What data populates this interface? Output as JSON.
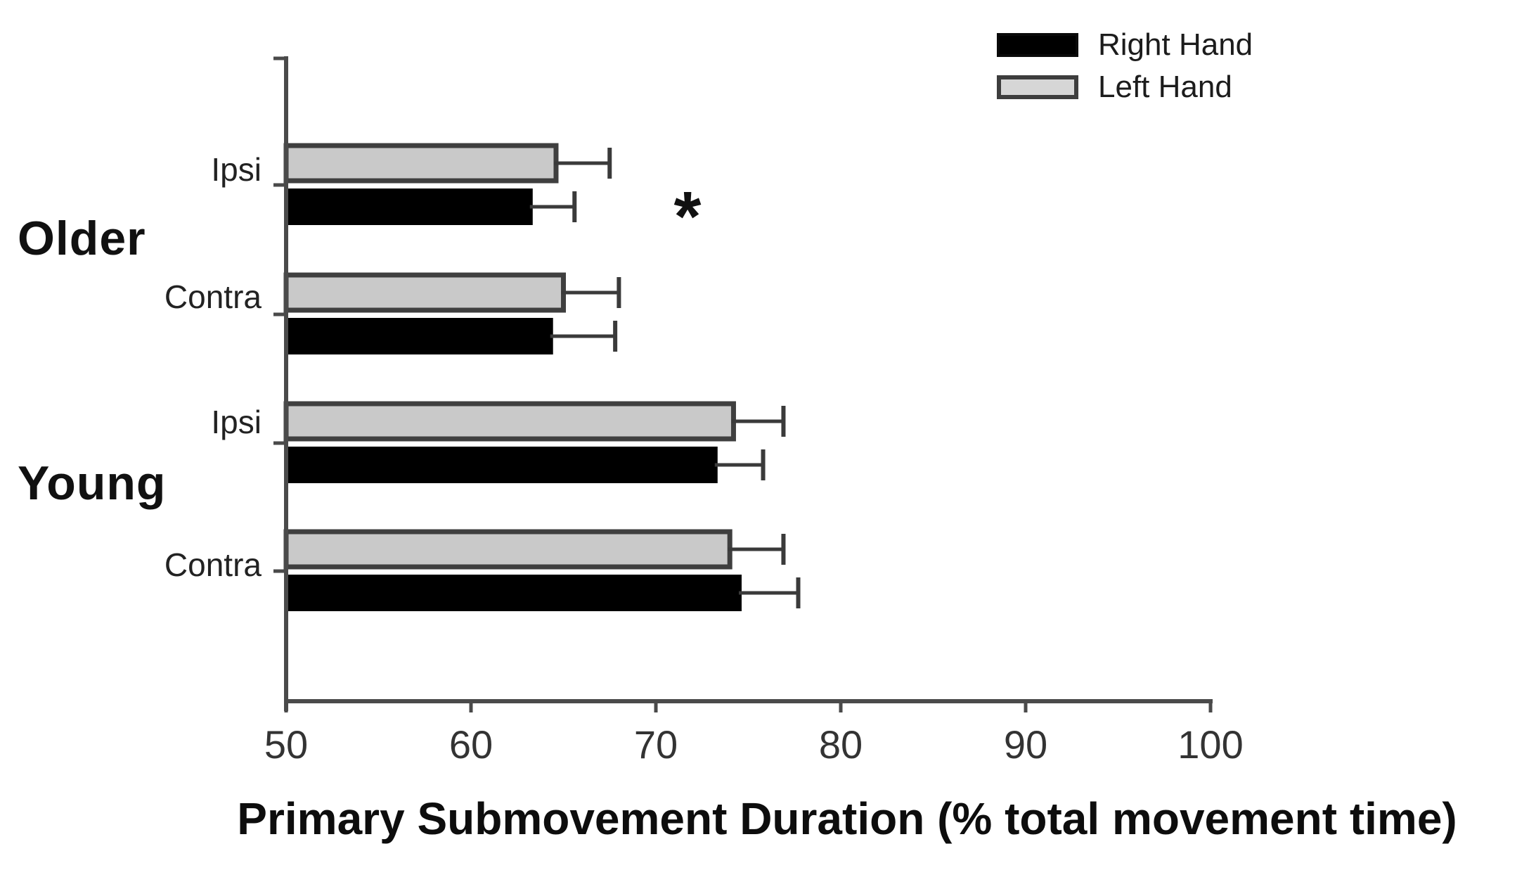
{
  "chart_data": {
    "type": "bar",
    "orientation": "horizontal",
    "xlabel": "Primary Submovement Duration (% total movement time)",
    "xlim": [
      50,
      100
    ],
    "x_ticks": [
      50,
      60,
      70,
      80,
      90,
      100
    ],
    "grid": false,
    "legend_position": "top-right",
    "groups": [
      "Older",
      "Young"
    ],
    "row_labels": [
      "Ipsi",
      "Contra",
      "Ipsi",
      "Contra"
    ],
    "categories": [
      "Older Ipsi",
      "Older Contra",
      "Young Ipsi",
      "Young Contra"
    ],
    "series": [
      {
        "name": "Right Hand",
        "color": "#000000",
        "values": [
          63.3,
          64.4,
          73.3,
          74.6
        ],
        "errors": [
          2.3,
          3.4,
          2.5,
          3.1
        ]
      },
      {
        "name": "Left Hand",
        "color": "#c9c9c9",
        "values": [
          64.6,
          65.0,
          74.2,
          74.0
        ],
        "errors": [
          2.9,
          3.0,
          2.7,
          2.9
        ]
      }
    ],
    "bar_border_color": "#3f3f3f",
    "axis_color": "#4a4a4a",
    "error_bar_color": "#3a3a3a",
    "annotation": {
      "text": "*",
      "x_value": 71.5,
      "location": "between Older Ipsi and Older Contra rows"
    }
  }
}
